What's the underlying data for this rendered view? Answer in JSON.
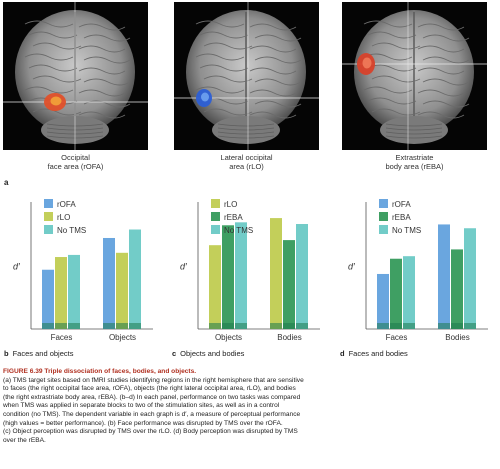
{
  "colors": {
    "blue": "#6aa6df",
    "yellow_green": "#c3cf5a",
    "green": "#3f9f63",
    "teal": "#72ccc8",
    "dark_bottom": "#1e7a4e",
    "axis": "#555555",
    "caption_title": "#b03020"
  },
  "brain_panels": [
    {
      "caption_lines": [
        "Occipital",
        "face area (rOFA)"
      ],
      "blob_color": "#e0502a",
      "blob_glow": "#f2a33a"
    },
    {
      "caption_lines": [
        "Lateral occipital",
        "area (rLO)"
      ],
      "blob_color": "#2c5fd6",
      "blob_glow": "#6fa2f0"
    },
    {
      "caption_lines": [
        "Extrastriate",
        "body area (rEBA)"
      ],
      "blob_color": "#d8412a",
      "blob_glow": "#f07a5a"
    }
  ],
  "panel_a_label": "a",
  "chart_data": [
    {
      "type": "bar",
      "panel": "b",
      "panel_title": "Faces and objects",
      "ylabel": "d′",
      "categories": [
        "Faces",
        "Objects"
      ],
      "series": [
        {
          "name": "rOFA",
          "color": "#6aa6df",
          "values": [
            1.4,
            2.15
          ]
        },
        {
          "name": "rLO",
          "color": "#c3cf5a",
          "values": [
            1.7,
            1.8
          ]
        },
        {
          "name": "No TMS",
          "color": "#72ccc8",
          "values": [
            1.75,
            2.35
          ]
        }
      ],
      "ylim": [
        0,
        3
      ],
      "grid": false,
      "legend": "top-left"
    },
    {
      "type": "bar",
      "panel": "c",
      "panel_title": "Objects and bodies",
      "ylabel": "d′",
      "categories": [
        "Objects",
        "Bodies"
      ],
      "series": [
        {
          "name": "rLO",
          "color": "#c3cf5a",
          "values": [
            1.98,
            2.62
          ]
        },
        {
          "name": "rEBA",
          "color": "#3f9f63",
          "values": [
            2.45,
            2.1
          ]
        },
        {
          "name": "No TMS",
          "color": "#72ccc8",
          "values": [
            2.52,
            2.48
          ]
        }
      ],
      "ylim": [
        0,
        3
      ],
      "grid": false,
      "legend": "top-left"
    },
    {
      "type": "bar",
      "panel": "d",
      "panel_title": "Faces and bodies",
      "ylabel": "d′",
      "categories": [
        "Faces",
        "Bodies"
      ],
      "series": [
        {
          "name": "rOFA",
          "color": "#6aa6df",
          "values": [
            1.3,
            2.47
          ]
        },
        {
          "name": "rEBA",
          "color": "#3f9f63",
          "values": [
            1.66,
            1.88
          ]
        },
        {
          "name": "No TMS",
          "color": "#72ccc8",
          "values": [
            1.72,
            2.38
          ]
        }
      ],
      "ylim": [
        0,
        3
      ],
      "grid": false,
      "legend": "top-left"
    }
  ],
  "caption": {
    "title": "FIGURE 6.39 Triple dissociation of faces, bodies, and objects.",
    "lines": [
      "(a) TMS target sites based on fMRI studies identifying regions in the right hemisphere that are sensitive",
      "to faces (the right occipital face area, rOFA), objects (the right lateral occipital area, rLO), and bodies",
      "(the right extrastriate body area, rEBA). (b–d) In each panel, performance on two tasks was compared",
      "when TMS was applied in separate blocks to two of the stimulation sites, as well as in a control",
      "condition (no TMS). The dependent variable in each graph is d′, a measure of perceptual performance",
      "(high values = better performance). (b) Face performance was disrupted by TMS over the rOFA.",
      "(c) Object perception was disrupted by TMS over the rLO. (d) Body perception was disrupted by TMS",
      "over the rEBA."
    ]
  }
}
